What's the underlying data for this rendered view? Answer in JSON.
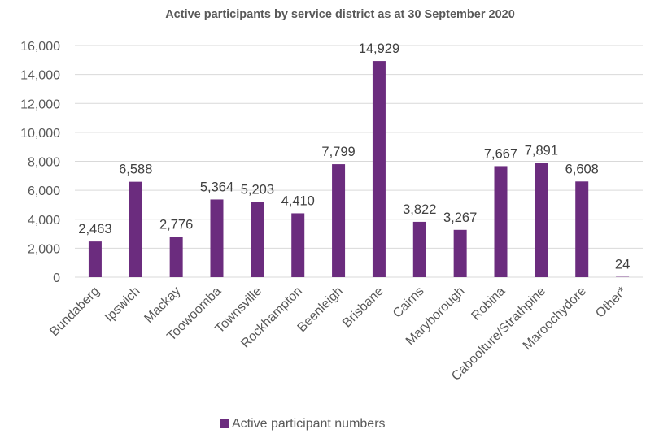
{
  "chart_data": {
    "type": "bar",
    "title": "Active participants by service district as at 30 September 2020",
    "xlabel": "",
    "ylabel": "",
    "ylim": [
      0,
      16000
    ],
    "yticks": [
      0,
      2000,
      4000,
      6000,
      8000,
      10000,
      12000,
      14000,
      16000
    ],
    "ytick_labels": [
      "0",
      "2,000",
      "4,000",
      "6,000",
      "8,000",
      "10,000",
      "12,000",
      "14,000",
      "16,000"
    ],
    "grid": true,
    "legend_position": "bottom",
    "categories": [
      "Bundaberg",
      "Ipswich",
      "Mackay",
      "Toowoomba",
      "Townsville",
      "Rockhampton",
      "Beenleigh",
      "Brisbane",
      "Cairns",
      "Maryborough",
      "Robina",
      "Caboolture/Strathpine",
      "Maroochydore",
      "Other*"
    ],
    "series": [
      {
        "name": "Active participant numbers",
        "color": "#6B2C7E",
        "values": [
          2463,
          6588,
          2776,
          5364,
          5203,
          4410,
          7799,
          14929,
          3822,
          3267,
          7667,
          7891,
          6608,
          24
        ],
        "labels": [
          "2,463",
          "6,588",
          "2,776",
          "5,364",
          "5,203",
          "4,410",
          "7,799",
          "14,929",
          "3,822",
          "3,267",
          "7,667",
          "7,891",
          "6,608",
          "24"
        ]
      }
    ]
  }
}
